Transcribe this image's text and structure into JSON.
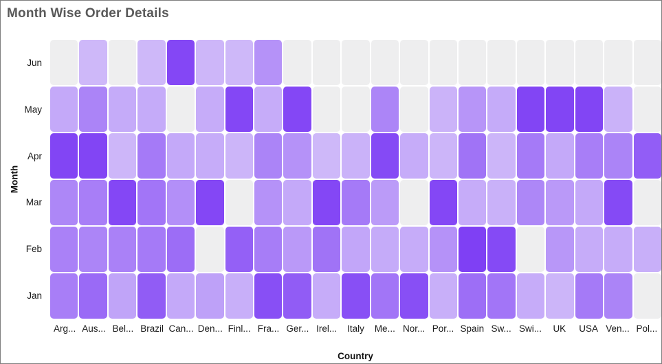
{
  "chart_data": {
    "type": "heatmap",
    "title": "Month Wise Order Details",
    "xlabel": "Country",
    "ylabel": "Month",
    "x_categories": [
      "Arg...",
      "Aus...",
      "Bel...",
      "Brazil",
      "Can...",
      "Den...",
      "Finl...",
      "Fra...",
      "Ger...",
      "Irel...",
      "Italy",
      "Me...",
      "Nor...",
      "Por...",
      "Spain",
      "Sw...",
      "Swi...",
      "UK",
      "USA",
      "Ven...",
      "Pol..."
    ],
    "y_categories": [
      "Jun",
      "May",
      "Apr",
      "Mar",
      "Feb",
      "Jan"
    ],
    "values": [
      [
        null,
        12,
        null,
        12,
        90,
        13,
        12,
        38,
        null,
        null,
        null,
        null,
        null,
        null,
        null,
        null,
        null,
        null,
        null,
        null,
        null
      ],
      [
        22,
        48,
        21,
        21,
        null,
        20,
        90,
        20,
        90,
        null,
        null,
        47,
        null,
        15,
        36,
        21,
        92,
        92,
        92,
        16,
        null
      ],
      [
        92,
        92,
        13,
        55,
        22,
        20,
        14,
        48,
        38,
        12,
        16,
        88,
        20,
        14,
        60,
        14,
        55,
        22,
        52,
        48,
        75
      ],
      [
        46,
        52,
        90,
        58,
        40,
        90,
        null,
        38,
        22,
        90,
        55,
        32,
        null,
        90,
        20,
        17,
        46,
        33,
        22,
        88,
        null
      ],
      [
        50,
        47,
        50,
        55,
        64,
        null,
        73,
        53,
        33,
        60,
        24,
        21,
        20,
        38,
        95,
        88,
        null,
        35,
        20,
        20,
        18
      ],
      [
        52,
        66,
        26,
        76,
        22,
        28,
        18,
        85,
        76,
        20,
        85,
        58,
        85,
        18,
        63,
        58,
        20,
        14,
        55,
        48,
        null
      ]
    ],
    "value_domain": [
      0,
      100
    ],
    "colors": {
      "min_color": "#d9c9fa",
      "max_color": "#7a39f4",
      "empty_color": "#eeeeef",
      "title_color": "#5a5a5a",
      "tick_color": "#1a1a1a"
    },
    "legend": "none",
    "grid": "off"
  }
}
